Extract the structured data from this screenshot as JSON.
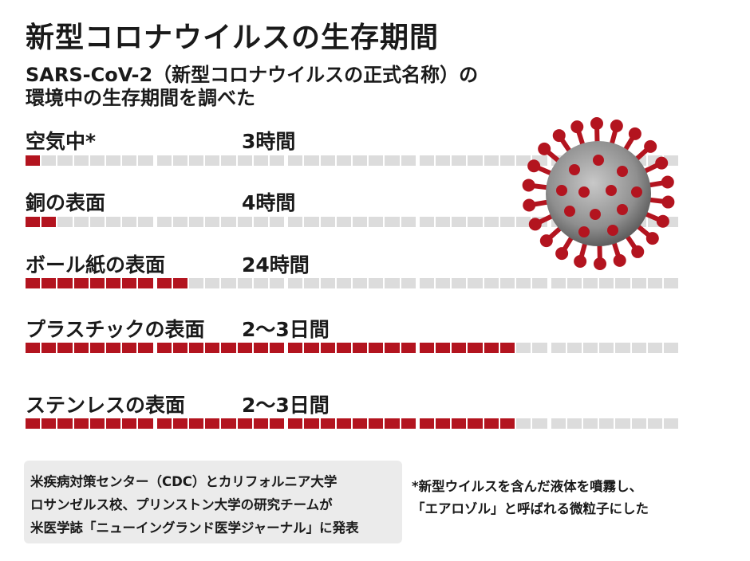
{
  "title": "新型コロナウイルスの生存期間",
  "subtitle": {
    "line1": "SARS-CoV-2（新型コロナウイルスの正式名称）の",
    "line2": "環境中の生存期間を調べた"
  },
  "colors": {
    "bar_filled": "#b3141f",
    "bar_empty": "#dcdcdc",
    "virus_spike": "#b3141f",
    "virus_body": "#9a9a9a"
  },
  "chart_data": {
    "type": "bar",
    "orientation": "horizontal",
    "segments_per_bar": 40,
    "categories": [
      "空気中*",
      "銅の表面",
      "ボール紙の表面",
      "プラスチックの表面",
      "ステンレスの表面"
    ],
    "value_labels": [
      "3時間",
      "4時間",
      "24時間",
      "2〜3日間",
      "2〜3日間"
    ],
    "values": [
      3,
      4,
      24,
      72,
      72
    ],
    "unit": "時間",
    "xlim": [
      0,
      96
    ],
    "grid": false,
    "legend": false
  },
  "source": {
    "line1": "米疾病対策センター（CDC）とカリフォルニア大学",
    "line2": "ロサンゼルス校、プリンストン大学の研究チームが",
    "line3": "米医学誌「ニューイングランド医学ジャーナル」に発表"
  },
  "footnote": {
    "line1": "*新型ウイルスを含んだ液体を噴霧し、",
    "line2": "「エアロゾル」と呼ばれる微粒子にした"
  }
}
